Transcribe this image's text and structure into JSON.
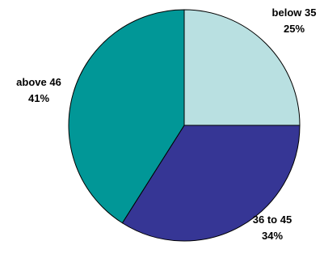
{
  "chart_data": {
    "type": "pie",
    "title": "",
    "slices": [
      {
        "label": "below 35",
        "percent_label": "25%",
        "value": 25,
        "color": "#b9e0e1"
      },
      {
        "label": "36 to 45",
        "percent_label": "34%",
        "value": 34,
        "color": "#363695"
      },
      {
        "label": "above 46",
        "percent_label": "41%",
        "value": 41,
        "color": "#019797"
      }
    ],
    "start_angle": "12 o'clock",
    "direction": "clockwise",
    "slice_border_color": "#000000"
  }
}
